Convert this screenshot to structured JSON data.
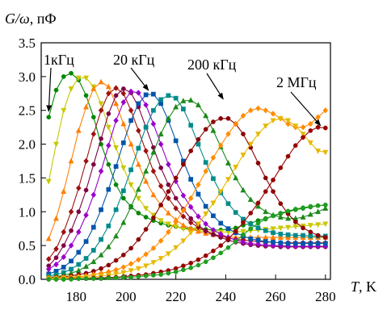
{
  "chart_data": {
    "type": "line",
    "ylabel_var": "G/ω",
    "ylabel_unit": ", пФ",
    "xlabel_var": "T",
    "xlabel_unit": ", K",
    "xlim": [
      166,
      282
    ],
    "ylim": [
      0.0,
      3.5
    ],
    "xticks": [
      "180",
      "200",
      "220",
      "240",
      "260",
      "280"
    ],
    "yticks": [
      "0.0",
      "0.5",
      "1.0",
      "1.5",
      "2.0",
      "2.5",
      "3.0",
      "3.5"
    ],
    "grid": false,
    "annotations": [
      {
        "text": "1кГц",
        "series": 0,
        "x": 169,
        "y": 2.45
      },
      {
        "text": "20 кГц",
        "series": 4,
        "x": 209,
        "y": 2.76
      },
      {
        "text": "200 кГц",
        "series": 8,
        "x": 239,
        "y": 2.63
      },
      {
        "text": "2 МГц",
        "series": 12,
        "x": 278,
        "y": 2.24
      }
    ],
    "series": [
      {
        "color": "#008800",
        "marker": "circle",
        "x": [
          169,
          172,
          175,
          178,
          181,
          184,
          187,
          190,
          193,
          196,
          199,
          202,
          205,
          208,
          211,
          214,
          217,
          220,
          223,
          226,
          229,
          232,
          235,
          238,
          241,
          244,
          247,
          250,
          253,
          256,
          259,
          262,
          265,
          268,
          271,
          274,
          277,
          280
        ],
        "values": [
          2.4,
          2.8,
          3.0,
          3.05,
          2.95,
          2.72,
          2.4,
          2.0,
          1.7,
          1.4,
          1.2,
          1.08,
          0.98,
          0.92,
          0.87,
          0.83,
          0.8,
          0.78,
          0.76,
          0.75,
          0.74,
          0.74,
          0.73,
          0.73,
          0.74,
          0.76,
          0.8,
          0.83,
          0.87,
          0.9,
          0.94,
          0.97,
          1.0,
          1.03,
          1.05,
          1.07,
          1.09,
          1.1
        ]
      },
      {
        "color": "#c8c800",
        "marker": "triangle-down",
        "x": [
          169,
          172,
          175,
          178,
          181,
          184,
          187,
          190,
          193,
          196,
          199,
          202,
          205,
          208,
          211,
          214,
          217,
          220,
          223,
          226,
          229,
          232,
          235,
          238,
          241,
          244,
          247,
          250,
          253,
          256,
          259,
          262,
          265,
          268,
          271,
          274,
          277,
          280
        ],
        "values": [
          1.45,
          2.0,
          2.5,
          2.82,
          2.98,
          2.98,
          2.85,
          2.6,
          2.25,
          1.95,
          1.65,
          1.4,
          1.2,
          1.05,
          0.95,
          0.87,
          0.82,
          0.78,
          0.75,
          0.73,
          0.72,
          0.71,
          0.7,
          0.7,
          0.7,
          0.7,
          0.71,
          0.72,
          0.73,
          0.74,
          0.75,
          0.76,
          0.77,
          0.78,
          0.79,
          0.8,
          0.81,
          0.82
        ]
      },
      {
        "color": "#ff7f00",
        "marker": "triangle-up",
        "x": [
          169,
          172,
          175,
          178,
          181,
          184,
          187,
          190,
          193,
          196,
          199,
          202,
          205,
          208,
          211,
          214,
          217,
          220,
          223,
          226,
          229,
          232,
          235,
          238,
          241,
          244,
          247,
          250,
          253,
          256,
          259,
          262,
          265,
          268,
          271,
          274,
          277,
          280
        ],
        "values": [
          0.6,
          0.9,
          1.3,
          1.75,
          2.2,
          2.55,
          2.82,
          2.92,
          2.85,
          2.6,
          2.3,
          2.0,
          1.7,
          1.45,
          1.25,
          1.1,
          0.98,
          0.88,
          0.8,
          0.75,
          0.71,
          0.68,
          0.66,
          0.64,
          0.63,
          0.62,
          0.62,
          0.62,
          0.62,
          0.62,
          0.62,
          0.62,
          0.62,
          0.62,
          0.62,
          0.62,
          0.62,
          0.62
        ]
      },
      {
        "color": "#a01010",
        "marker": "diamond",
        "x": [
          169,
          172,
          175,
          178,
          181,
          184,
          187,
          190,
          193,
          196,
          199,
          202,
          205,
          208,
          211,
          214,
          217,
          220,
          223,
          226,
          229,
          232,
          235,
          238,
          241,
          244,
          247,
          250,
          253,
          256,
          259,
          262,
          265,
          268,
          271,
          274,
          277,
          280
        ],
        "values": [
          0.3,
          0.45,
          0.7,
          1.0,
          1.35,
          1.75,
          2.15,
          2.5,
          2.75,
          2.83,
          2.75,
          2.5,
          2.2,
          1.9,
          1.6,
          1.38,
          1.2,
          1.05,
          0.93,
          0.84,
          0.77,
          0.71,
          0.67,
          0.64,
          0.61,
          0.59,
          0.58,
          0.57,
          0.56,
          0.55,
          0.55,
          0.54,
          0.54,
          0.54,
          0.54,
          0.54,
          0.54,
          0.54
        ]
      },
      {
        "color": "#800040",
        "marker": "circle",
        "x": [
          169,
          172,
          175,
          178,
          181,
          184,
          187,
          190,
          193,
          196,
          199,
          202,
          205,
          208,
          211,
          214,
          217,
          220,
          223,
          226,
          229,
          232,
          235,
          238,
          241,
          244,
          247,
          250,
          253,
          256,
          259,
          262,
          265,
          268,
          271,
          274,
          277,
          280
        ],
        "values": [
          0.2,
          0.32,
          0.5,
          0.72,
          1.0,
          1.32,
          1.7,
          2.08,
          2.45,
          2.72,
          2.82,
          2.76,
          2.55,
          2.25,
          1.95,
          1.65,
          1.4,
          1.2,
          1.04,
          0.9,
          0.8,
          0.72,
          0.66,
          0.62,
          0.58,
          0.55,
          0.53,
          0.51,
          0.5,
          0.49,
          0.49,
          0.48,
          0.48,
          0.48,
          0.48,
          0.48,
          0.48,
          0.48
        ]
      },
      {
        "color": "#9900cc",
        "marker": "diamond",
        "x": [
          169,
          172,
          175,
          178,
          181,
          184,
          187,
          190,
          193,
          196,
          199,
          202,
          205,
          208,
          211,
          214,
          217,
          220,
          223,
          226,
          229,
          232,
          235,
          238,
          241,
          244,
          247,
          250,
          253,
          256,
          259,
          262,
          265,
          268,
          271,
          274,
          277,
          280
        ],
        "values": [
          0.15,
          0.22,
          0.33,
          0.5,
          0.7,
          0.95,
          1.25,
          1.6,
          1.98,
          2.35,
          2.62,
          2.78,
          2.76,
          2.58,
          2.3,
          2.0,
          1.7,
          1.45,
          1.24,
          1.07,
          0.93,
          0.82,
          0.73,
          0.67,
          0.62,
          0.58,
          0.55,
          0.53,
          0.52,
          0.51,
          0.5,
          0.5,
          0.49,
          0.49,
          0.49,
          0.49,
          0.49,
          0.49
        ]
      },
      {
        "color": "#0055aa",
        "marker": "square",
        "x": [
          169,
          172,
          175,
          178,
          181,
          184,
          187,
          190,
          193,
          196,
          199,
          202,
          205,
          208,
          211,
          214,
          217,
          220,
          223,
          226,
          229,
          232,
          235,
          238,
          241,
          244,
          247,
          250,
          253,
          256,
          259,
          262,
          265,
          268,
          271,
          274,
          277,
          280
        ],
        "values": [
          0.08,
          0.12,
          0.18,
          0.27,
          0.4,
          0.56,
          0.77,
          1.03,
          1.33,
          1.67,
          2.02,
          2.35,
          2.6,
          2.73,
          2.74,
          2.6,
          2.35,
          2.05,
          1.75,
          1.48,
          1.26,
          1.08,
          0.94,
          0.83,
          0.75,
          0.69,
          0.64,
          0.6,
          0.58,
          0.56,
          0.55,
          0.54,
          0.53,
          0.53,
          0.53,
          0.53,
          0.53,
          0.53
        ]
      },
      {
        "color": "#008b8b",
        "marker": "square",
        "x": [
          169,
          172,
          175,
          178,
          181,
          184,
          187,
          190,
          193,
          196,
          199,
          202,
          205,
          208,
          211,
          214,
          217,
          220,
          223,
          226,
          229,
          232,
          235,
          238,
          241,
          244,
          247,
          250,
          253,
          256,
          259,
          262,
          265,
          268,
          271,
          274,
          277,
          280
        ],
        "values": [
          0.05,
          0.07,
          0.1,
          0.15,
          0.22,
          0.31,
          0.43,
          0.59,
          0.79,
          1.03,
          1.31,
          1.62,
          1.94,
          2.25,
          2.5,
          2.66,
          2.72,
          2.68,
          2.52,
          2.28,
          2.0,
          1.73,
          1.49,
          1.28,
          1.12,
          0.99,
          0.89,
          0.82,
          0.76,
          0.72,
          0.69,
          0.67,
          0.66,
          0.65,
          0.65,
          0.64,
          0.64,
          0.64
        ]
      },
      {
        "color": "#1b8a1b",
        "marker": "triangle-up",
        "x": [
          169,
          172,
          175,
          178,
          181,
          184,
          187,
          190,
          193,
          196,
          199,
          202,
          205,
          208,
          211,
          214,
          217,
          220,
          223,
          226,
          229,
          232,
          235,
          238,
          241,
          244,
          247,
          250,
          253,
          256,
          259,
          262,
          265,
          268,
          271,
          274,
          277,
          280
        ],
        "values": [
          0.03,
          0.04,
          0.06,
          0.09,
          0.13,
          0.19,
          0.26,
          0.36,
          0.48,
          0.64,
          0.84,
          1.07,
          1.33,
          1.6,
          1.88,
          2.15,
          2.38,
          2.55,
          2.64,
          2.65,
          2.58,
          2.42,
          2.2,
          1.96,
          1.72,
          1.5,
          1.32,
          1.18,
          1.08,
          1.0,
          0.95,
          0.92,
          0.9,
          0.9,
          0.92,
          0.96,
          1.0,
          1.05
        ]
      },
      {
        "color": "#8b0000",
        "marker": "circle",
        "x": [
          169,
          172,
          175,
          178,
          181,
          184,
          187,
          190,
          193,
          196,
          199,
          202,
          205,
          208,
          211,
          214,
          217,
          220,
          223,
          226,
          229,
          232,
          235,
          238,
          241,
          244,
          247,
          250,
          253,
          256,
          259,
          262,
          265,
          268,
          271,
          274,
          277,
          280
        ],
        "values": [
          0.02,
          0.03,
          0.04,
          0.05,
          0.07,
          0.09,
          0.12,
          0.16,
          0.21,
          0.28,
          0.36,
          0.46,
          0.59,
          0.74,
          0.91,
          1.1,
          1.3,
          1.5,
          1.7,
          1.9,
          2.07,
          2.22,
          2.33,
          2.38,
          2.38,
          2.3,
          2.15,
          1.95,
          1.72,
          1.5,
          1.3,
          1.12,
          0.97,
          0.85,
          0.76,
          0.7,
          0.65,
          0.62
        ]
      },
      {
        "color": "#ff8c00",
        "marker": "diamond",
        "x": [
          169,
          172,
          175,
          178,
          181,
          184,
          187,
          190,
          193,
          196,
          199,
          202,
          205,
          208,
          211,
          214,
          217,
          220,
          223,
          226,
          229,
          232,
          235,
          238,
          241,
          244,
          247,
          250,
          253,
          256,
          259,
          262,
          265,
          268,
          271,
          274,
          277,
          280
        ],
        "values": [
          0.02,
          0.02,
          0.03,
          0.03,
          0.04,
          0.05,
          0.07,
          0.09,
          0.11,
          0.14,
          0.18,
          0.23,
          0.29,
          0.37,
          0.46,
          0.57,
          0.7,
          0.85,
          1.02,
          1.2,
          1.4,
          1.6,
          1.8,
          1.98,
          2.15,
          2.3,
          2.42,
          2.5,
          2.53,
          2.5,
          2.45,
          2.38,
          2.3,
          2.25,
          2.25,
          2.3,
          2.4,
          2.5
        ]
      },
      {
        "color": "#e6b800",
        "marker": "triangle-down",
        "x": [
          169,
          172,
          175,
          178,
          181,
          184,
          187,
          190,
          193,
          196,
          199,
          202,
          205,
          208,
          211,
          214,
          217,
          220,
          223,
          226,
          229,
          232,
          235,
          238,
          241,
          244,
          247,
          250,
          253,
          256,
          259,
          262,
          265,
          268,
          271,
          274,
          277,
          280
        ],
        "values": [
          0.01,
          0.01,
          0.02,
          0.02,
          0.03,
          0.03,
          0.04,
          0.05,
          0.06,
          0.08,
          0.1,
          0.13,
          0.16,
          0.2,
          0.25,
          0.31,
          0.38,
          0.47,
          0.57,
          0.69,
          0.82,
          0.97,
          1.13,
          1.3,
          1.48,
          1.66,
          1.84,
          2.0,
          2.15,
          2.27,
          2.35,
          2.38,
          2.35,
          2.27,
          2.15,
          2.02,
          1.9,
          1.88
        ]
      },
      {
        "color": "#990000",
        "marker": "circle",
        "x": [
          169,
          172,
          175,
          178,
          181,
          184,
          187,
          190,
          193,
          196,
          199,
          202,
          205,
          208,
          211,
          214,
          217,
          220,
          223,
          226,
          229,
          232,
          235,
          238,
          241,
          244,
          247,
          250,
          253,
          256,
          259,
          262,
          265,
          268,
          271,
          274,
          277,
          280
        ],
        "values": [
          0.0,
          0.0,
          0.0,
          0.01,
          0.01,
          0.01,
          0.02,
          0.02,
          0.03,
          0.03,
          0.04,
          0.05,
          0.06,
          0.07,
          0.09,
          0.11,
          0.13,
          0.16,
          0.2,
          0.24,
          0.29,
          0.35,
          0.42,
          0.5,
          0.6,
          0.71,
          0.84,
          0.98,
          1.13,
          1.3,
          1.47,
          1.65,
          1.82,
          1.98,
          2.1,
          2.2,
          2.25,
          2.24
        ]
      },
      {
        "color": "#1f9e1f",
        "marker": "circle",
        "x": [
          169,
          172,
          175,
          178,
          181,
          184,
          187,
          190,
          193,
          196,
          199,
          202,
          205,
          208,
          211,
          214,
          217,
          220,
          223,
          226,
          229,
          232,
          235,
          238,
          241,
          244,
          247,
          250,
          253,
          256,
          259,
          262,
          265,
          268,
          271,
          274,
          277,
          280
        ],
        "values": [
          0.0,
          0.0,
          0.0,
          0.0,
          0.01,
          0.01,
          0.01,
          0.01,
          0.02,
          0.02,
          0.03,
          0.03,
          0.04,
          0.05,
          0.06,
          0.07,
          0.09,
          0.11,
          0.14,
          0.17,
          0.21,
          0.26,
          0.32,
          0.39,
          0.47,
          0.56,
          0.66,
          0.75,
          0.83,
          0.89,
          0.94,
          0.98,
          1.01,
          1.04,
          1.06,
          1.08,
          1.09,
          1.1
        ]
      }
    ]
  }
}
